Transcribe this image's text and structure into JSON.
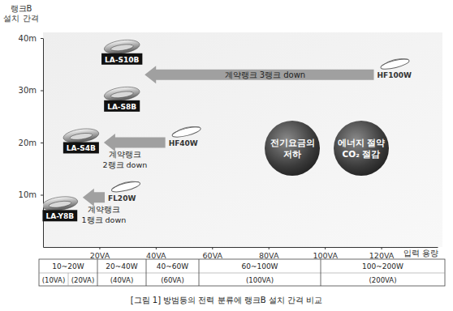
{
  "chart_data": {
    "type": "scatter",
    "title": "[그림 1] 방범등의 전력 분류에 랭크B 설치 간격 비교",
    "y_label": [
      "랭크B",
      "설치 간격"
    ],
    "x_label": "입력 용량",
    "xlim": [
      0,
      140
    ],
    "xticks": [
      {
        "value": 20,
        "label": "20VA"
      },
      {
        "value": 40,
        "label": "40VA"
      },
      {
        "value": 60,
        "label": "60VA"
      },
      {
        "value": 80,
        "label": "80VA"
      },
      {
        "value": 100,
        "label": "100VA"
      },
      {
        "value": 120,
        "label": "120VA"
      }
    ],
    "ylim": [
      0,
      40
    ],
    "yticks": [
      {
        "value": 10,
        "label": "10m"
      },
      {
        "value": 20,
        "label": "20m"
      },
      {
        "value": 30,
        "label": "30m"
      },
      {
        "value": 40,
        "label": "40m"
      }
    ],
    "grid": false,
    "series": [
      {
        "marker": "led-lamp",
        "color": "#111111",
        "x": [
          28,
          13.5,
          6,
          28
        ],
        "values": [
          36,
          19,
          6,
          27
        ],
        "labels": [
          "LA-S10B",
          "LA-S4B",
          "LA-Y8B",
          "LA-S8B"
        ]
      },
      {
        "marker": "lamp-outline",
        "color": "#666666",
        "x": [
          122,
          48,
          26.5
        ],
        "values": [
          33,
          20,
          9.5
        ],
        "labels": [
          "HF100W",
          "HF40W",
          "FL20W"
        ]
      }
    ],
    "annotations": [
      {
        "lines": [
          "계약랭크 3랭크 down"
        ]
      },
      {
        "lines": [
          "계약랭크",
          "2랭크 down"
        ]
      },
      {
        "lines": [
          "계약랭크",
          "1랭크 down"
        ]
      }
    ],
    "callouts": [
      [
        "전기요금의",
        "저하"
      ],
      [
        "에너지 절약",
        "CO₂ 절감"
      ]
    ],
    "power_classes": [
      {
        "label": "10~20W",
        "sub": [
          "(10VA)",
          "(20VA)"
        ]
      },
      {
        "label": "20~40W",
        "sub": [
          "(40VA)"
        ]
      },
      {
        "label": "40~60W",
        "sub": [
          "(60VA)"
        ]
      },
      {
        "label": "60~100W",
        "sub": [
          "(100VA)"
        ]
      },
      {
        "label": "100~200W",
        "sub": [
          "(200VA)"
        ]
      }
    ]
  }
}
